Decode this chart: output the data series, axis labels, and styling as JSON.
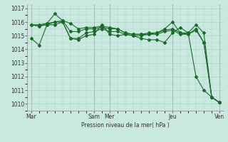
{
  "background_color": "#c8e8e0",
  "grid_color": "#b0d4c8",
  "line_color": "#1a6b2a",
  "ylabel": "Pression niveau de la mer( hPa )",
  "ylim": [
    1009.5,
    1017.3
  ],
  "yticks": [
    1010,
    1011,
    1012,
    1013,
    1014,
    1015,
    1016,
    1017
  ],
  "day_labels": [
    "Mar",
    "Sam",
    "Mer",
    "Jeu",
    "Ven"
  ],
  "day_positions": [
    0,
    8,
    10,
    18,
    24
  ],
  "series": [
    [
      1014.8,
      1014.3,
      1015.8,
      1015.8,
      1016.0,
      1014.8,
      1014.7,
      1015.0,
      1015.1,
      1015.8,
      1015.1,
      1015.0,
      1015.1,
      1015.0,
      1014.8,
      1014.7,
      1014.7,
      1014.5,
      1015.2,
      1015.6,
      1015.2,
      1012.0,
      1011.0,
      1010.5,
      1010.1
    ],
    [
      1015.8,
      1015.8,
      1015.9,
      1016.6,
      1016.1,
      1015.9,
      1015.5,
      1015.6,
      1015.6,
      1015.7,
      1015.6,
      1015.5,
      1015.2,
      1015.1,
      1015.1,
      1015.2,
      1015.2,
      1015.5,
      1016.0,
      1015.2,
      1015.2,
      1015.8,
      1015.2,
      1010.5,
      1010.1
    ],
    [
      1015.8,
      1015.7,
      1015.9,
      1016.0,
      1016.1,
      1015.3,
      1015.3,
      1015.5,
      1015.5,
      1015.6,
      1015.5,
      1015.5,
      1015.2,
      1015.1,
      1015.1,
      1015.1,
      1015.2,
      1015.4,
      1015.5,
      1015.2,
      1015.1,
      1015.5,
      1014.5,
      1010.5,
      1010.1
    ],
    [
      1015.8,
      1015.7,
      1015.8,
      1016.0,
      1016.0,
      1014.8,
      1014.8,
      1015.2,
      1015.3,
      1015.5,
      1015.3,
      1015.3,
      1015.1,
      1015.0,
      1015.0,
      1015.1,
      1015.1,
      1015.3,
      1015.4,
      1015.1,
      1015.1,
      1015.4,
      1014.5,
      1010.5,
      1010.1
    ]
  ]
}
